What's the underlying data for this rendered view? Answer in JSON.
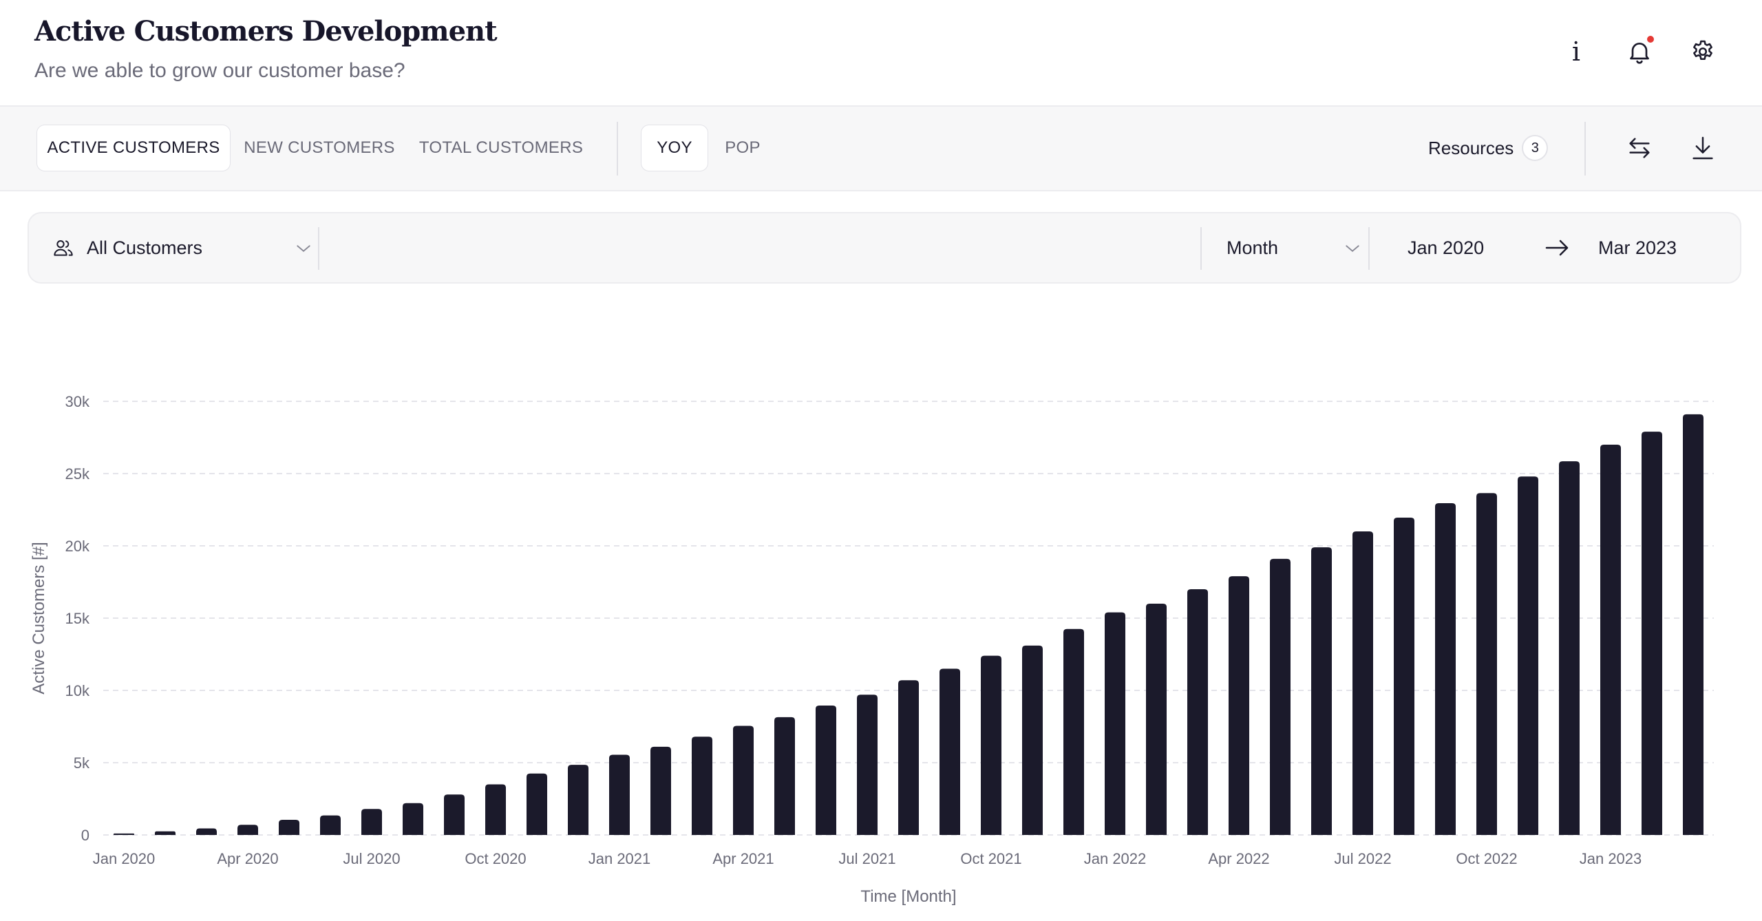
{
  "header": {
    "title": "Active Customers Development",
    "subtitle": "Are we able to grow our customer base?",
    "icons": [
      "info-icon",
      "bell-icon",
      "gear-icon"
    ],
    "notification_dot_color": "#e53935"
  },
  "tabs": {
    "metric_tabs": [
      {
        "label": "ACTIVE CUSTOMERS",
        "active": true
      },
      {
        "label": "NEW CUSTOMERS",
        "active": false
      },
      {
        "label": "TOTAL CUSTOMERS",
        "active": false
      }
    ],
    "comparison_tabs": [
      {
        "label": "YOY",
        "active": true
      },
      {
        "label": "POP",
        "active": false
      }
    ],
    "resources_label": "Resources",
    "resources_count": "3",
    "icons": [
      "swap-icon",
      "download-icon"
    ]
  },
  "filters": {
    "segment": "All Customers",
    "granularity": "Month",
    "date_from": "Jan 2020",
    "date_to": "Mar 2023",
    "icons": [
      "users-icon",
      "chevron-down-icon",
      "arrow-right-icon"
    ]
  },
  "chart_data": {
    "type": "bar",
    "xlabel": "Time [Month]",
    "ylabel": "Active Customers [#]",
    "ylim": [
      0,
      30000
    ],
    "yticks": [
      0,
      5000,
      10000,
      15000,
      20000,
      25000,
      30000
    ],
    "ytick_labels": [
      "0",
      "5k",
      "10k",
      "15k",
      "20k",
      "25k",
      "30k"
    ],
    "categories": [
      "Jan 2020",
      "Feb 2020",
      "Mar 2020",
      "Apr 2020",
      "May 2020",
      "Jun 2020",
      "Jul 2020",
      "Aug 2020",
      "Sep 2020",
      "Oct 2020",
      "Nov 2020",
      "Dec 2020",
      "Jan 2021",
      "Feb 2021",
      "Mar 2021",
      "Apr 2021",
      "May 2021",
      "Jun 2021",
      "Jul 2021",
      "Aug 2021",
      "Sep 2021",
      "Oct 2021",
      "Nov 2021",
      "Dec 2021",
      "Jan 2022",
      "Feb 2022",
      "Mar 2022",
      "Apr 2022",
      "May 2022",
      "Jun 2022",
      "Jul 2022",
      "Aug 2022",
      "Sep 2022",
      "Oct 2022",
      "Nov 2022",
      "Dec 2022",
      "Jan 2023",
      "Feb 2023",
      "Mar 2023"
    ],
    "xtick_labels": [
      "Jan 2020",
      "Apr 2020",
      "Jul 2020",
      "Oct 2020",
      "Jan 2021",
      "Apr 2021",
      "Jul 2021",
      "Oct 2021",
      "Jan 2022",
      "Apr 2022",
      "Jul 2022",
      "Oct 2022",
      "Jan 2023"
    ],
    "values": [
      100,
      250,
      450,
      700,
      1050,
      1350,
      1800,
      2200,
      2800,
      3500,
      4250,
      4850,
      5550,
      6100,
      6800,
      7550,
      8150,
      8950,
      9700,
      10700,
      11500,
      12400,
      13100,
      14250,
      15400,
      16000,
      17000,
      17900,
      19100,
      19900,
      21000,
      21950,
      22950,
      23650,
      24800,
      25850,
      27000,
      27900,
      29100
    ],
    "bar_color": "#1b1a2b",
    "grid": true,
    "legend": false
  }
}
